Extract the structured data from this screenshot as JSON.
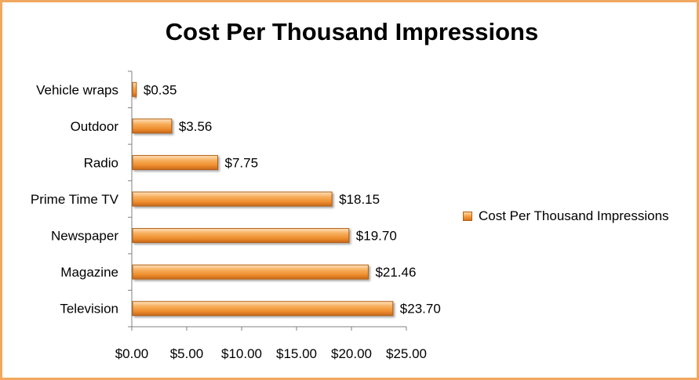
{
  "chart_data": {
    "type": "bar",
    "orientation": "horizontal",
    "title": "Cost Per Thousand Impressions",
    "categories": [
      "Vehicle wraps",
      "Outdoor",
      "Radio",
      "Prime Time TV",
      "Newspaper",
      "Magazine",
      "Television"
    ],
    "series": [
      {
        "name": "Cost Per Thousand Impressions",
        "values": [
          0.35,
          3.56,
          7.75,
          18.15,
          19.7,
          21.46,
          23.7
        ],
        "data_labels": [
          "$0.35",
          "$3.56",
          "$7.75",
          "$18.15",
          "$19.70",
          "$21.46",
          "$23.70"
        ]
      }
    ],
    "xlim": [
      0,
      25
    ],
    "x_ticks": [
      0,
      5,
      10,
      15,
      20,
      25
    ],
    "x_tick_labels": [
      "$0.00",
      "$5.00",
      "$10.00",
      "$15.00",
      "$20.00",
      "$25.00"
    ],
    "xlabel": "",
    "ylabel": "",
    "grid": false,
    "legend_position": "right",
    "bar_color": "#F39B3A",
    "bar_edge_color": "#B05E14",
    "border_color": "#F0A860"
  }
}
